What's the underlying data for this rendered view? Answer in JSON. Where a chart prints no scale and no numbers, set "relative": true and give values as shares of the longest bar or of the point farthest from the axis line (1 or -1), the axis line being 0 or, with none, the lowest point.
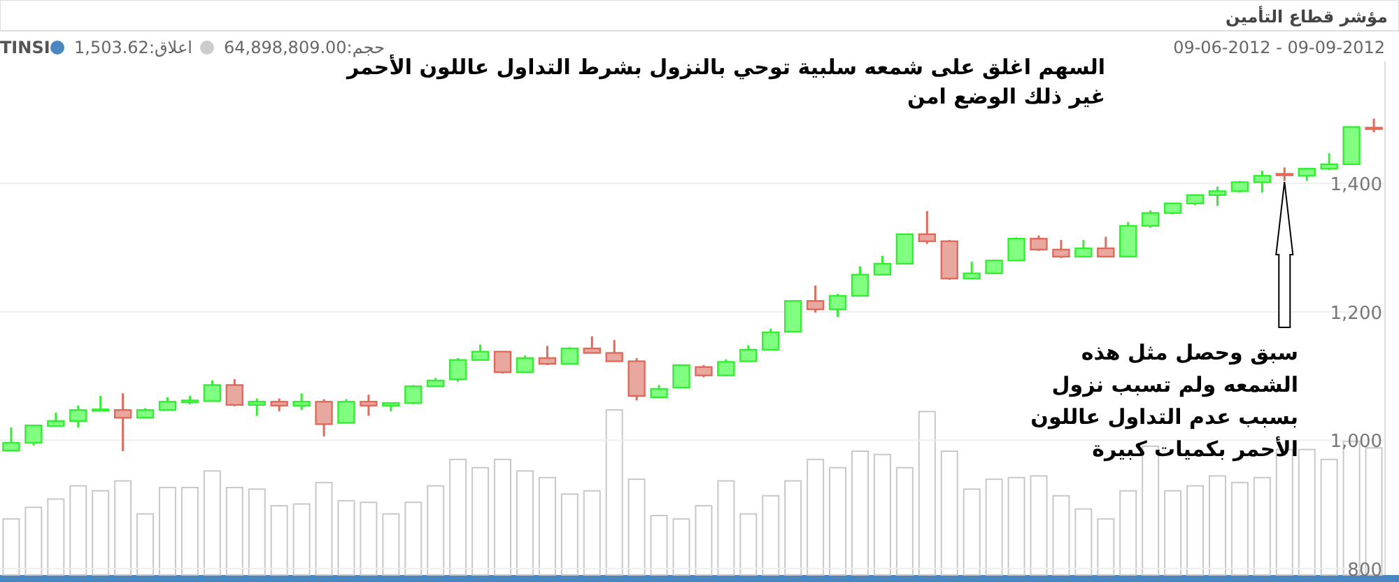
{
  "chart_data": [
    {
      "type": "candlestick",
      "title": "مؤشر قطاع التأمين",
      "subtitle": "09-06-2012 - 09-09-2012",
      "annotations": [
        "TINSI",
        "اعلاق:1,503.62",
        "حجم:64,898,809.00",
        "السهم اغلق على شمعه سلبية توحي بالنزول بشرط التداول عاللون الأحمر\nغير ذلك الوضع امن",
        "سبق وحصل مثل هذه\nالشمعه ولم تسبب نزول\nبسبب عدم التداول عاللون\nالأحمر بكميات كبيرة"
      ],
      "categories": [
        null,
        null,
        null,
        null,
        null,
        null,
        null,
        null,
        null,
        null,
        null,
        null,
        null,
        null,
        null,
        null,
        null,
        null,
        null,
        null,
        null,
        null,
        null,
        null,
        null,
        null,
        null,
        null,
        null,
        null,
        null,
        null,
        null,
        null,
        null,
        null,
        null,
        null,
        null,
        null,
        null,
        null,
        null,
        null,
        null,
        null,
        null,
        null,
        null,
        null,
        null,
        null,
        null,
        null,
        null,
        null,
        null,
        null,
        null,
        null,
        null,
        null
      ],
      "ohlc": [
        [
          984,
          1020,
          984,
          996
        ],
        [
          996,
          1023,
          992,
          1023
        ],
        [
          1022,
          1043,
          1022,
          1030
        ],
        [
          1030,
          1054,
          1020,
          1047
        ],
        [
          1047,
          1069,
          1046,
          1048
        ],
        [
          1047,
          1073,
          983,
          1035
        ],
        [
          1035,
          1050,
          1035,
          1047
        ],
        [
          1047,
          1067,
          1047,
          1060
        ],
        [
          1059,
          1069,
          1056,
          1062
        ],
        [
          1061,
          1093,
          1061,
          1086
        ],
        [
          1086,
          1095,
          1053,
          1055
        ],
        [
          1055,
          1065,
          1038,
          1060
        ],
        [
          1060,
          1065,
          1045,
          1054
        ],
        [
          1054,
          1073,
          1047,
          1060
        ],
        [
          1060,
          1064,
          1006,
          1025
        ],
        [
          1027,
          1064,
          1027,
          1060
        ],
        [
          1060,
          1071,
          1038,
          1054
        ],
        [
          1054,
          1058,
          1045,
          1058
        ],
        [
          1058,
          1086,
          1056,
          1084
        ],
        [
          1084,
          1097,
          1084,
          1093
        ],
        [
          1095,
          1128,
          1091,
          1125
        ],
        [
          1125,
          1149,
          1125,
          1138
        ],
        [
          1138,
          1138,
          1104,
          1106
        ],
        [
          1106,
          1132,
          1106,
          1128
        ],
        [
          1128,
          1147,
          1117,
          1119
        ],
        [
          1119,
          1145,
          1119,
          1143
        ],
        [
          1143,
          1162,
          1136,
          1136
        ],
        [
          1136,
          1156,
          1123,
          1123
        ],
        [
          1123,
          1128,
          1062,
          1069
        ],
        [
          1067,
          1086,
          1067,
          1080
        ],
        [
          1082,
          1117,
          1082,
          1117
        ],
        [
          1114,
          1117,
          1098,
          1101
        ],
        [
          1101,
          1126,
          1100,
          1122
        ],
        [
          1123,
          1148,
          1122,
          1141
        ],
        [
          1141,
          1174,
          1141,
          1168
        ],
        [
          1169,
          1217,
          1169,
          1217
        ],
        [
          1217,
          1241,
          1199,
          1204
        ],
        [
          1204,
          1228,
          1192,
          1225
        ],
        [
          1225,
          1271,
          1225,
          1258
        ],
        [
          1258,
          1287,
          1258,
          1275
        ],
        [
          1275,
          1321,
          1275,
          1321
        ],
        [
          1321,
          1357,
          1306,
          1310
        ],
        [
          1310,
          1312,
          1250,
          1252
        ],
        [
          1252,
          1278,
          1251,
          1260
        ],
        [
          1260,
          1281,
          1260,
          1280
        ],
        [
          1280,
          1316,
          1280,
          1314
        ],
        [
          1314,
          1319,
          1295,
          1297
        ],
        [
          1297,
          1312,
          1284,
          1286
        ],
        [
          1286,
          1312,
          1286,
          1299
        ],
        [
          1299,
          1317,
          1285,
          1286
        ],
        [
          1286,
          1340,
          1286,
          1334
        ],
        [
          1334,
          1358,
          1331,
          1354
        ],
        [
          1354,
          1370,
          1352,
          1369
        ],
        [
          1369,
          1383,
          1366,
          1382
        ],
        [
          1382,
          1395,
          1365,
          1388
        ],
        [
          1388,
          1404,
          1386,
          1402
        ],
        [
          1402,
          1420,
          1386,
          1412
        ],
        [
          1415,
          1425,
          1404,
          1414
        ],
        [
          1412,
          1424,
          1404,
          1423
        ],
        [
          1423,
          1447,
          1421,
          1430
        ],
        [
          1430,
          1488,
          1430,
          1488
        ],
        [
          1487,
          1501,
          1480,
          1486
        ]
      ],
      "ylim": [
        790,
        1590
      ],
      "yticks": [
        {
          "value": 800,
          "label": "800"
        },
        {
          "value": 1000,
          "label": "1,000"
        },
        {
          "value": 1200,
          "label": "1,200"
        },
        {
          "value": 1400,
          "label": "1,400"
        }
      ],
      "grid": "y",
      "tick_labels": "y"
    },
    {
      "type": "bar",
      "relative": true,
      "categories": [
        null,
        null,
        null,
        null,
        null,
        null,
        null,
        null,
        null,
        null,
        null,
        null,
        null,
        null,
        null,
        null,
        null,
        null,
        null,
        null,
        null,
        null,
        null,
        null,
        null,
        null,
        null,
        null,
        null,
        null,
        null,
        null,
        null,
        null,
        null,
        null,
        null,
        null,
        null,
        null,
        null,
        null,
        null,
        null,
        null,
        null,
        null,
        null,
        null,
        null,
        null,
        null,
        null,
        null,
        null,
        null,
        null,
        null,
        null,
        null,
        null,
        null
      ],
      "series": [
        {
          "color": "#c8c8c8",
          "values": [
            0.34,
            0.41,
            0.46,
            0.54,
            0.51,
            0.57,
            0.37,
            0.53,
            0.53,
            0.63,
            0.53,
            0.52,
            0.42,
            0.43,
            0.56,
            0.45,
            0.44,
            0.37,
            0.44,
            0.54,
            0.7,
            0.65,
            0.7,
            0.63,
            0.59,
            0.49,
            0.51,
            1,
            0.58,
            0.36,
            0.34,
            0.42,
            0.57,
            0.37,
            0.48,
            0.57,
            0.7,
            0.65,
            0.75,
            0.73,
            0.65,
            0.99,
            0.75,
            0.52,
            0.58,
            0.59,
            0.6,
            0.48,
            0.4,
            0.34,
            0.51,
            0.78,
            0.51,
            0.54,
            0.6,
            0.56,
            0.59,
            0.76,
            0.76,
            0.7,
            0.81,
            0.77
          ]
        }
      ]
    }
  ]
}
